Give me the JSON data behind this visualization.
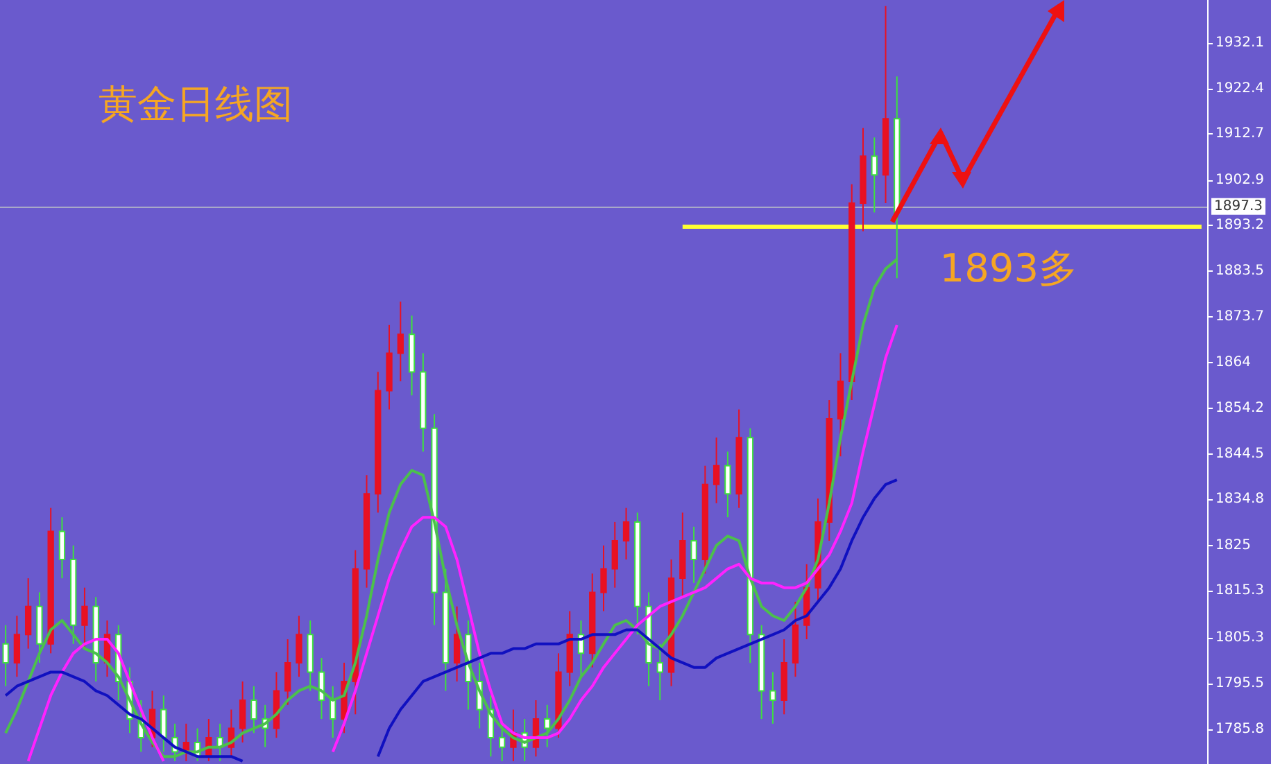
{
  "chart_data": {
    "type": "candlestick",
    "title": "黄金日线图",
    "categories": [
      null,
      null,
      null,
      null,
      null,
      null,
      null,
      null,
      null,
      null,
      null,
      null,
      null,
      null,
      null,
      null,
      null,
      null,
      null,
      null,
      null,
      null,
      null,
      null,
      null,
      null,
      null,
      null,
      null,
      null,
      null,
      null,
      null,
      null,
      null,
      null,
      null,
      null,
      null,
      null,
      null,
      null,
      null,
      null,
      null,
      null,
      null,
      null,
      null,
      null,
      null,
      null,
      null,
      null,
      null,
      null,
      null,
      null,
      null,
      null,
      null,
      null,
      null,
      null,
      null,
      null,
      null,
      null,
      null,
      null,
      null,
      null,
      null,
      null,
      null,
      null,
      null,
      null,
      null,
      null,
      null,
      null,
      null,
      null,
      null,
      null,
      null,
      null,
      null,
      null,
      null,
      null,
      null,
      null,
      null,
      null,
      null,
      null,
      null,
      null,
      null,
      null,
      null,
      null,
      null,
      null,
      null
    ],
    "series": [
      {
        "type": "candlestick",
        "ohlc": [
          [
            1804,
            1808,
            1795,
            1800
          ],
          [
            1800,
            1810,
            1797,
            1806
          ],
          [
            1806,
            1818,
            1803,
            1812
          ],
          [
            1812,
            1815,
            1800,
            1804
          ],
          [
            1804,
            1833,
            1802,
            1828
          ],
          [
            1828,
            1831,
            1818,
            1822
          ],
          [
            1822,
            1825,
            1804,
            1808
          ],
          [
            1808,
            1816,
            1803,
            1812
          ],
          [
            1812,
            1814,
            1796,
            1800
          ],
          [
            1800,
            1809,
            1797,
            1806
          ],
          [
            1806,
            1808,
            1792,
            1796
          ],
          [
            1796,
            1799,
            1785,
            1788
          ],
          [
            1788,
            1792,
            1781,
            1784
          ],
          [
            1784,
            1794,
            1782,
            1790
          ],
          [
            1790,
            1793,
            1781,
            1784
          ],
          [
            1784,
            1787,
            1779,
            1781
          ],
          [
            1781,
            1787,
            1779,
            1783
          ],
          [
            1783,
            1786,
            1779,
            1780
          ],
          [
            1780,
            1788,
            1779,
            1784
          ],
          [
            1784,
            1787,
            1779,
            1782
          ],
          [
            1782,
            1790,
            1780,
            1786
          ],
          [
            1786,
            1796,
            1783,
            1792
          ],
          [
            1792,
            1795,
            1785,
            1788
          ],
          [
            1788,
            1791,
            1782,
            1786
          ],
          [
            1786,
            1798,
            1784,
            1794
          ],
          [
            1794,
            1805,
            1791,
            1800
          ],
          [
            1800,
            1810,
            1797,
            1806
          ],
          [
            1806,
            1809,
            1794,
            1798
          ],
          [
            1798,
            1801,
            1788,
            1792
          ],
          [
            1792,
            1795,
            1784,
            1788
          ],
          [
            1788,
            1800,
            1785,
            1796
          ],
          [
            1796,
            1824,
            1789,
            1820
          ],
          [
            1820,
            1840,
            1816,
            1836
          ],
          [
            1836,
            1862,
            1832,
            1858
          ],
          [
            1858,
            1872,
            1854,
            1866
          ],
          [
            1866,
            1877,
            1860,
            1870
          ],
          [
            1870,
            1874,
            1857,
            1862
          ],
          [
            1862,
            1866,
            1845,
            1850
          ],
          [
            1850,
            1853,
            1808,
            1815
          ],
          [
            1815,
            1820,
            1794,
            1800
          ],
          [
            1800,
            1812,
            1796,
            1806
          ],
          [
            1806,
            1809,
            1790,
            1796
          ],
          [
            1796,
            1800,
            1786,
            1790
          ],
          [
            1790,
            1793,
            1780,
            1784
          ],
          [
            1784,
            1787,
            1779,
            1782
          ],
          [
            1782,
            1790,
            1779,
            1785
          ],
          [
            1785,
            1788,
            1779,
            1782
          ],
          [
            1782,
            1792,
            1780,
            1788
          ],
          [
            1788,
            1791,
            1782,
            1786
          ],
          [
            1786,
            1802,
            1784,
            1798
          ],
          [
            1798,
            1811,
            1795,
            1806
          ],
          [
            1806,
            1809,
            1797,
            1802
          ],
          [
            1802,
            1819,
            1799,
            1815
          ],
          [
            1815,
            1825,
            1811,
            1820
          ],
          [
            1820,
            1830,
            1816,
            1826
          ],
          [
            1826,
            1833,
            1822,
            1830
          ],
          [
            1830,
            1832,
            1806,
            1812
          ],
          [
            1812,
            1815,
            1795,
            1800
          ],
          [
            1800,
            1804,
            1792,
            1798
          ],
          [
            1798,
            1822,
            1795,
            1818
          ],
          [
            1818,
            1832,
            1814,
            1826
          ],
          [
            1826,
            1829,
            1817,
            1822
          ],
          [
            1822,
            1842,
            1819,
            1838
          ],
          [
            1838,
            1848,
            1834,
            1842
          ],
          [
            1842,
            1845,
            1831,
            1836
          ],
          [
            1836,
            1854,
            1833,
            1848
          ],
          [
            1848,
            1850,
            1800,
            1806
          ],
          [
            1806,
            1808,
            1788,
            1794
          ],
          [
            1794,
            1798,
            1787,
            1792
          ],
          [
            1792,
            1805,
            1789,
            1800
          ],
          [
            1800,
            1813,
            1797,
            1808
          ],
          [
            1808,
            1821,
            1805,
            1816
          ],
          [
            1816,
            1835,
            1813,
            1830
          ],
          [
            1830,
            1856,
            1826,
            1852
          ],
          [
            1852,
            1866,
            1844,
            1860
          ],
          [
            1860,
            1902,
            1856,
            1898
          ],
          [
            1898,
            1914,
            1892,
            1908
          ],
          [
            1908,
            1912,
            1896,
            1904
          ],
          [
            1904,
            1940,
            1898,
            1916
          ],
          [
            1916,
            1925,
            1882,
            1896
          ],
          null,
          null,
          null,
          null,
          null,
          null,
          null,
          null,
          null,
          null,
          null,
          null,
          null,
          null,
          null,
          null,
          null,
          null,
          null,
          null,
          null,
          null,
          null,
          null,
          null,
          null,
          null
        ],
        "colors": [
          "#3ee03e",
          "#e81123",
          "#e81123",
          "#3ee03e",
          "#e81123",
          "#3ee03e",
          "#3ee03e",
          "#e81123",
          "#3ee03e",
          "#e81123",
          "#3ee03e",
          "#3ee03e",
          "#3ee03e",
          "#e81123",
          "#3ee03e",
          "#3ee03e",
          "#e81123",
          "#3ee03e",
          "#e81123",
          "#3ee03e",
          "#e81123",
          "#e81123",
          "#3ee03e",
          "#3ee03e",
          "#e81123",
          "#e81123",
          "#e81123",
          "#3ee03e",
          "#3ee03e",
          "#3ee03e",
          "#e81123",
          "#e81123",
          "#e81123",
          "#e81123",
          "#e81123",
          "#e81123",
          "#3ee03e",
          "#3ee03e",
          "#3ee03e",
          "#3ee03e",
          "#e81123",
          "#3ee03e",
          "#3ee03e",
          "#3ee03e",
          "#3ee03e",
          "#e81123",
          "#3ee03e",
          "#e81123",
          "#3ee03e",
          "#e81123",
          "#e81123",
          "#3ee03e",
          "#e81123",
          "#e81123",
          "#e81123",
          "#e81123",
          "#3ee03e",
          "#3ee03e",
          "#3ee03e",
          "#e81123",
          "#e81123",
          "#3ee03e",
          "#e81123",
          "#e81123",
          "#3ee03e",
          "#e81123",
          "#3ee03e",
          "#3ee03e",
          "#3ee03e",
          "#e81123",
          "#e81123",
          "#e81123",
          "#e81123",
          "#e81123",
          "#e81123",
          "#e81123",
          "#e81123",
          "#3ee03e",
          "#e81123",
          "#3ee03e",
          null,
          null,
          null,
          null,
          null,
          null,
          null,
          null,
          null,
          null,
          null,
          null,
          null,
          null,
          null,
          null,
          null,
          null,
          null,
          null,
          null,
          null,
          null,
          null,
          null,
          null,
          null
        ]
      },
      {
        "type": "line",
        "color": "#4cc04c",
        "values": [
          1785,
          1790,
          1796,
          1802,
          1807,
          1809,
          1806,
          1803,
          1802,
          1800,
          1797,
          1792,
          1787,
          1783,
          1780,
          1780,
          1781,
          1781,
          1782,
          1782,
          1783,
          1785,
          1786,
          1787,
          1789,
          1792,
          1794,
          1795,
          1794,
          1792,
          1793,
          1800,
          1810,
          1822,
          1832,
          1838,
          1841,
          1840,
          1830,
          1818,
          1808,
          1800,
          1794,
          1789,
          1786,
          1784,
          1783,
          1784,
          1785,
          1788,
          1792,
          1797,
          1800,
          1804,
          1808,
          1809,
          1807,
          1804,
          1803,
          1806,
          1810,
          1815,
          1820,
          1825,
          1827,
          1826,
          1818,
          1812,
          1810,
          1809,
          1812,
          1816,
          1822,
          1834,
          1848,
          1860,
          1872,
          1880,
          1884,
          1886,
          null,
          null,
          null,
          null,
          null,
          null,
          null,
          null,
          null,
          null,
          null,
          null,
          null,
          null,
          null,
          null,
          null,
          null,
          null,
          null,
          null,
          null,
          null,
          null,
          null,
          null,
          null
        ]
      },
      {
        "type": "line",
        "color": "#ff22ff",
        "values": [
          null,
          null,
          1779,
          1786,
          1793,
          1798,
          1802,
          1804,
          1805,
          1805,
          1802,
          1796,
          1790,
          1784,
          1779,
          null,
          null,
          null,
          null,
          null,
          null,
          null,
          null,
          null,
          null,
          null,
          null,
          null,
          null,
          1781,
          1787,
          1794,
          1802,
          1810,
          1818,
          1824,
          1829,
          1831,
          1831,
          1829,
          1822,
          1812,
          1802,
          1794,
          1787,
          1785,
          1784,
          1784,
          1784,
          1785,
          1788,
          1792,
          1795,
          1799,
          1802,
          1805,
          1808,
          1810,
          1812,
          1813,
          1814,
          1815,
          1816,
          1818,
          1820,
          1821,
          1818,
          1817,
          1817,
          1816,
          1816,
          1817,
          1820,
          1823,
          1828,
          1834,
          1845,
          1855,
          1865,
          1872,
          null,
          null,
          null,
          null,
          null,
          null,
          null,
          null,
          null,
          null,
          null,
          null,
          null,
          null,
          null,
          null,
          null,
          null,
          null,
          null,
          null,
          null,
          null,
          null,
          null,
          null,
          null
        ]
      },
      {
        "type": "line",
        "color": "#1010c0",
        "values": [
          1793,
          1795,
          1796,
          1797,
          1798,
          1798,
          1797,
          1796,
          1794,
          1793,
          1791,
          1789,
          1788,
          1786,
          1784,
          1782,
          1781,
          1780,
          1780,
          1780,
          1780,
          1779,
          null,
          null,
          null,
          null,
          null,
          null,
          null,
          null,
          null,
          null,
          null,
          1780,
          1786,
          1790,
          1793,
          1796,
          1797,
          1798,
          1799,
          1800,
          1801,
          1802,
          1802,
          1803,
          1803,
          1804,
          1804,
          1804,
          1805,
          1805,
          1806,
          1806,
          1806,
          1807,
          1807,
          1805,
          1803,
          1801,
          1800,
          1799,
          1799,
          1801,
          1802,
          1803,
          1804,
          1805,
          1806,
          1807,
          1809,
          1810,
          1813,
          1816,
          1820,
          1826,
          1831,
          1835,
          1838,
          1839,
          null,
          null,
          null,
          null,
          null,
          null,
          null,
          null,
          null,
          null,
          null,
          null,
          null,
          null,
          null,
          null,
          null,
          null,
          null,
          null,
          null,
          null,
          null,
          null,
          null,
          null,
          null
        ]
      }
    ],
    "ylim": [
      1778.4,
      1941.3
    ],
    "yticks": [
      1785.8,
      1795.5,
      1805.3,
      1815.3,
      1825.0,
      1834.8,
      1844.5,
      1854.2,
      1864.0,
      1873.7,
      1883.5,
      1893.2,
      1902.9,
      1912.7,
      1922.4,
      1932.1
    ],
    "tick_labels": "y",
    "grid": false,
    "marker": "none",
    "ref_lines": [
      {
        "axis": "y",
        "value": 1893,
        "label": "1893多",
        "color": "#ffff33"
      },
      {
        "axis": "y",
        "value": 1897.3,
        "label": "1897.3",
        "color": "#a8a8c8"
      }
    ]
  }
}
